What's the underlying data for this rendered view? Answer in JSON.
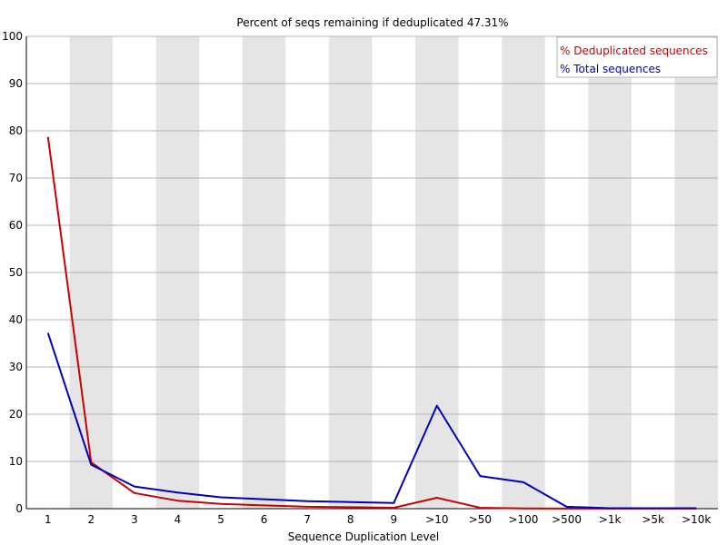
{
  "chart_data": {
    "type": "line",
    "title": "Percent of seqs remaining if deduplicated 47.31%",
    "xlabel": "Sequence Duplication Level",
    "ylabel": "",
    "ylim": [
      0,
      100
    ],
    "yticks": [
      0,
      10,
      20,
      30,
      40,
      50,
      60,
      70,
      80,
      90,
      100
    ],
    "categories": [
      "1",
      "2",
      "3",
      "4",
      "5",
      "6",
      "7",
      "8",
      "9",
      ">10",
      ">50",
      ">100",
      ">500",
      ">1k",
      ">5k",
      ">10k"
    ],
    "series": [
      {
        "name": "% Deduplicated sequences",
        "color": "#cc0000",
        "values": [
          78.7,
          9.8,
          3.3,
          1.7,
          1.0,
          0.7,
          0.4,
          0.3,
          0.2,
          2.3,
          0.2,
          0.05,
          0.02,
          0.01,
          0.01,
          0.01
        ]
      },
      {
        "name": "% Total sequences",
        "color": "#0000bb",
        "values": [
          37.2,
          9.3,
          4.7,
          3.4,
          2.4,
          2.0,
          1.6,
          1.4,
          1.2,
          21.8,
          6.9,
          5.6,
          0.4,
          0.1,
          0.1,
          0.1
        ]
      }
    ],
    "grid": true,
    "legend": "top-right",
    "colors": {
      "stripe": "#e5e5e5",
      "gridline": "#b4b4b4",
      "axis": "#000000"
    }
  }
}
